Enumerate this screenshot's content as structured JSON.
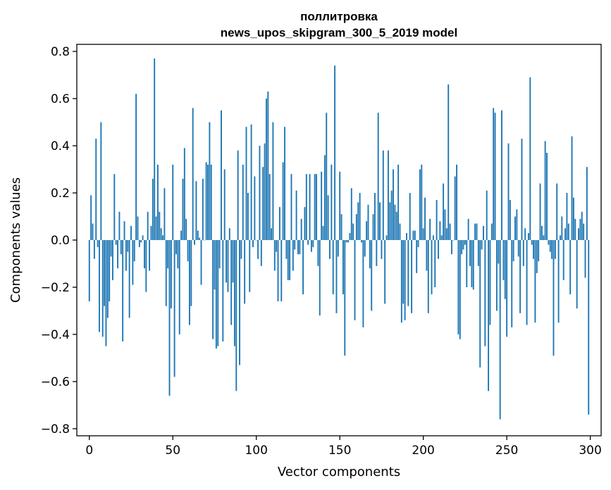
{
  "chart_data": {
    "type": "bar",
    "title_line1": "поллитровка",
    "title_line2": "news_upos_skipgram_300_5_2019 model",
    "xlabel": "Vector components",
    "ylabel": "Components values",
    "xlim": [
      -7.5,
      306.5
    ],
    "ylim": [
      -0.83,
      0.83
    ],
    "xticks": [
      0,
      50,
      100,
      150,
      200,
      250,
      300
    ],
    "yticks": [
      -0.8,
      -0.6,
      -0.4,
      -0.2,
      0.0,
      0.2,
      0.4,
      0.6,
      0.8
    ],
    "ytick_labels": [
      "−0.8",
      "−0.6",
      "−0.4",
      "−0.2",
      "0.0",
      "0.2",
      "0.4",
      "0.6",
      "0.8"
    ],
    "bar_color": "#1f77b4",
    "grid": false,
    "x": [
      0,
      1,
      2,
      3,
      4,
      5,
      6,
      7,
      8,
      9,
      10,
      11,
      12,
      13,
      14,
      15,
      16,
      17,
      18,
      19,
      20,
      21,
      22,
      23,
      24,
      25,
      26,
      27,
      28,
      29,
      30,
      31,
      32,
      33,
      34,
      35,
      36,
      37,
      38,
      39,
      40,
      41,
      42,
      43,
      44,
      45,
      46,
      47,
      48,
      49,
      50,
      51,
      52,
      53,
      54,
      55,
      56,
      57,
      58,
      59,
      60,
      61,
      62,
      63,
      64,
      65,
      66,
      67,
      68,
      69,
      70,
      71,
      72,
      73,
      74,
      75,
      76,
      77,
      78,
      79,
      80,
      81,
      82,
      83,
      84,
      85,
      86,
      87,
      88,
      89,
      90,
      91,
      92,
      93,
      94,
      95,
      96,
      97,
      98,
      99,
      100,
      101,
      102,
      103,
      104,
      105,
      106,
      107,
      108,
      109,
      110,
      111,
      112,
      113,
      114,
      115,
      116,
      117,
      118,
      119,
      120,
      121,
      122,
      123,
      124,
      125,
      126,
      127,
      128,
      129,
      130,
      131,
      132,
      133,
      134,
      135,
      136,
      137,
      138,
      139,
      140,
      141,
      142,
      143,
      144,
      145,
      146,
      147,
      148,
      149,
      150,
      151,
      152,
      153,
      154,
      155,
      156,
      157,
      158,
      159,
      160,
      161,
      162,
      163,
      164,
      165,
      166,
      167,
      168,
      169,
      170,
      171,
      172,
      173,
      174,
      175,
      176,
      177,
      178,
      179,
      180,
      181,
      182,
      183,
      184,
      185,
      186,
      187,
      188,
      189,
      190,
      191,
      192,
      193,
      194,
      195,
      196,
      197,
      198,
      199,
      200,
      201,
      202,
      203,
      204,
      205,
      206,
      207,
      208,
      209,
      210,
      211,
      212,
      213,
      214,
      215,
      216,
      217,
      218,
      219,
      220,
      221,
      222,
      223,
      224,
      225,
      226,
      227,
      228,
      229,
      230,
      231,
      232,
      233,
      234,
      235,
      236,
      237,
      238,
      239,
      240,
      241,
      242,
      243,
      244,
      245,
      246,
      247,
      248,
      249,
      250,
      251,
      252,
      253,
      254,
      255,
      256,
      257,
      258,
      259,
      260,
      261,
      262,
      263,
      264,
      265,
      266,
      267,
      268,
      269,
      270,
      271,
      272,
      273,
      274,
      275,
      276,
      277,
      278,
      279,
      280,
      281,
      282,
      283,
      284,
      285,
      286,
      287,
      288,
      289,
      290,
      291,
      292,
      293,
      294,
      295,
      296,
      297,
      298,
      299
    ],
    "values": [
      -0.26,
      0.19,
      0.07,
      -0.08,
      0.43,
      -0.03,
      -0.39,
      0.5,
      -0.41,
      -0.28,
      -0.45,
      -0.33,
      -0.26,
      -0.07,
      -0.17,
      0.28,
      -0.02,
      -0.12,
      0.12,
      -0.06,
      -0.43,
      0.08,
      -0.13,
      -0.05,
      -0.33,
      0.06,
      -0.19,
      -0.09,
      0.62,
      0.1,
      -0.03,
      -0.01,
      0.02,
      -0.12,
      -0.22,
      0.12,
      -0.13,
      0.06,
      0.26,
      0.77,
      0.1,
      0.32,
      0.12,
      0.05,
      0.02,
      0.22,
      -0.28,
      -0.12,
      -0.66,
      -0.29,
      0.32,
      -0.58,
      -0.06,
      -0.12,
      -0.4,
      0.04,
      0.26,
      0.39,
      0.09,
      -0.09,
      -0.36,
      -0.28,
      0.56,
      -0.02,
      0.25,
      0.04,
      0.01,
      -0.19,
      0.26,
      0.0,
      0.33,
      0.32,
      0.5,
      0.32,
      -0.42,
      -0.21,
      -0.46,
      -0.45,
      -0.12,
      0.55,
      -0.43,
      0.3,
      -0.18,
      -0.22,
      0.05,
      -0.36,
      -0.18,
      -0.45,
      -0.64,
      0.38,
      -0.53,
      -0.08,
      0.32,
      -0.27,
      0.48,
      0.2,
      -0.22,
      0.49,
      -0.03,
      0.27,
      0.0,
      -0.08,
      0.4,
      -0.11,
      0.31,
      0.41,
      0.6,
      0.63,
      0.28,
      0.05,
      0.5,
      -0.13,
      -0.05,
      -0.26,
      0.14,
      -0.26,
      0.33,
      0.48,
      -0.08,
      -0.17,
      -0.17,
      0.28,
      -0.13,
      -0.04,
      0.21,
      -0.06,
      -0.06,
      0.09,
      -0.23,
      0.14,
      0.28,
      -0.02,
      0.28,
      -0.05,
      -0.03,
      0.28,
      0.28,
      -0.11,
      -0.32,
      0.29,
      0.06,
      0.36,
      0.54,
      0.19,
      -0.08,
      0.32,
      -0.23,
      0.74,
      -0.31,
      -0.07,
      0.29,
      0.11,
      -0.23,
      -0.49,
      -0.01,
      -0.01,
      0.03,
      0.22,
      0.07,
      -0.34,
      0.11,
      0.16,
      0.2,
      -0.01,
      -0.37,
      -0.07,
      0.08,
      0.15,
      -0.12,
      -0.3,
      0.11,
      0.2,
      -0.11,
      0.54,
      0.16,
      -0.08,
      0.38,
      -0.27,
      0.02,
      0.38,
      0.16,
      0.21,
      0.3,
      0.15,
      0.12,
      0.32,
      0.07,
      -0.35,
      -0.27,
      -0.34,
      0.03,
      -0.28,
      0.2,
      -0.31,
      0.04,
      0.04,
      -0.14,
      -0.03,
      0.3,
      0.32,
      0.05,
      0.18,
      -0.13,
      -0.31,
      0.09,
      -0.23,
      0.02,
      -0.2,
      0.17,
      -0.08,
      0.08,
      0.02,
      0.24,
      0.13,
      0.05,
      0.66,
      0.07,
      -0.06,
      0.0,
      0.27,
      0.32,
      -0.4,
      -0.42,
      -0.06,
      -0.04,
      -0.02,
      -0.2,
      0.09,
      -0.11,
      -0.2,
      -0.21,
      0.07,
      0.07,
      -0.11,
      -0.54,
      -0.04,
      0.06,
      -0.45,
      0.21,
      -0.64,
      -0.36,
      0.07,
      0.56,
      0.54,
      -0.3,
      -0.1,
      -0.76,
      0.55,
      -0.17,
      -0.25,
      -0.41,
      0.41,
      0.17,
      -0.37,
      -0.09,
      0.1,
      0.13,
      -0.07,
      -0.31,
      0.43,
      -0.11,
      0.05,
      -0.36,
      0.03,
      0.69,
      -0.02,
      -0.08,
      -0.35,
      -0.14,
      -0.09,
      0.24,
      0.06,
      0.02,
      0.42,
      0.37,
      -0.02,
      -0.05,
      -0.08,
      -0.49,
      -0.08,
      0.24,
      -0.35,
      0.02,
      0.1,
      -0.17,
      0.05,
      0.2,
      0.07,
      -0.23,
      0.44,
      0.18,
      0.09,
      -0.29,
      0.05,
      0.09,
      0.12,
      0.07,
      -0.16,
      0.31,
      -0.74
    ]
  }
}
